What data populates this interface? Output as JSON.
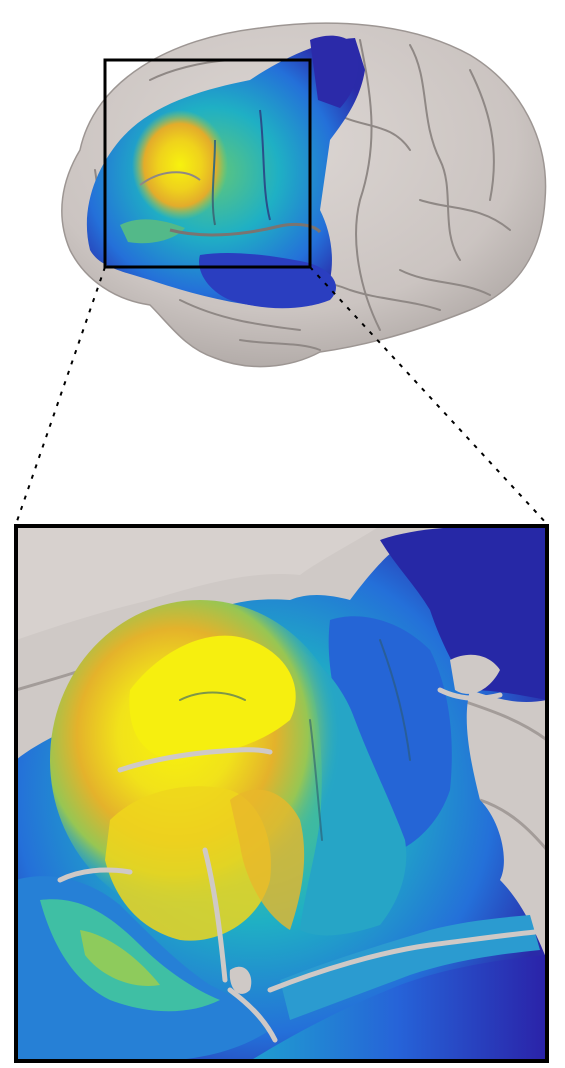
{
  "figure": {
    "colors": {
      "brain_surface": "#cfc9c6",
      "brain_shadow": "#a9a29f",
      "sulcus": "#8f8885",
      "hot": "#f4ee10",
      "warm": "#e8b02a",
      "mid": "#7ccf5a",
      "cool": "#1fa9c9",
      "cold": "#2659d6",
      "deep": "#2a1fa6",
      "frame": "#000000"
    },
    "icons": [
      "brain-overview",
      "inset-frame",
      "zoom-connector-lines",
      "magnified-activation-map"
    ]
  }
}
